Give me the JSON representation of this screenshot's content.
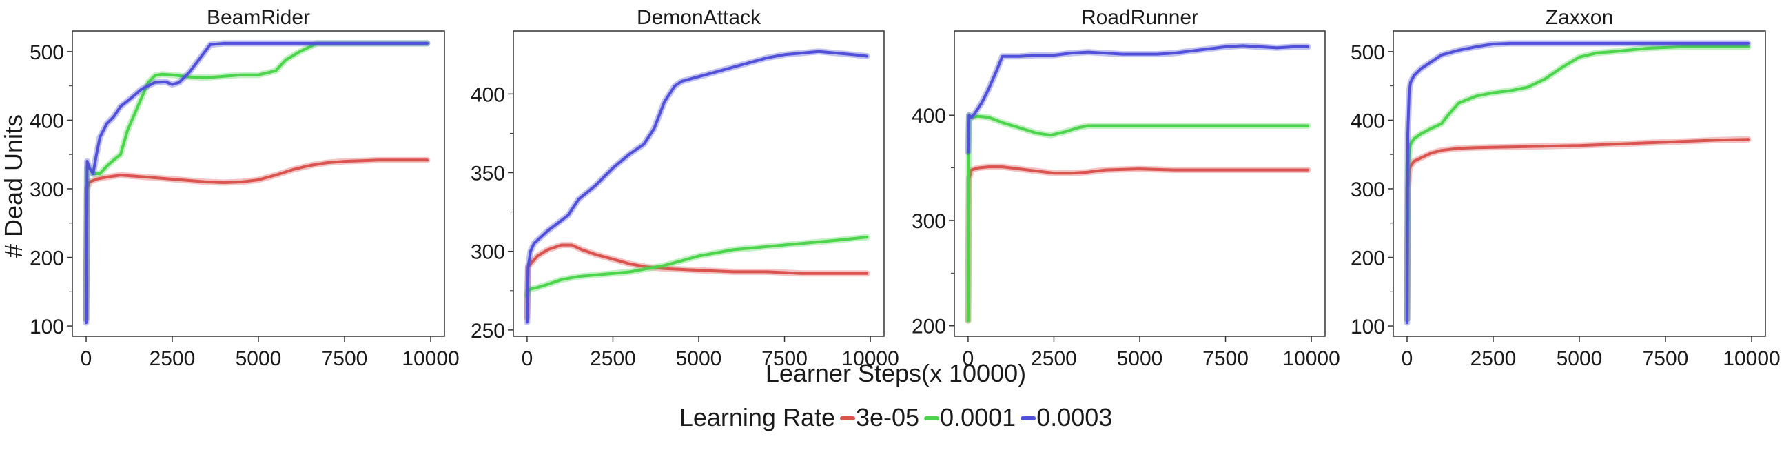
{
  "figure": {
    "ylabel": "# Dead Units",
    "xlabel": "Learner Steps(x 10000)",
    "legend": {
      "title": "Learning Rate",
      "placement": "bottom-center",
      "entries": [
        {
          "label": "3e-05",
          "color": "#d9534f"
        },
        {
          "label": "0.0001",
          "color": "#4cd44c"
        },
        {
          "label": "0.0003",
          "color": "#5050d8"
        }
      ]
    }
  },
  "chart_data": [
    {
      "type": "line",
      "title": "BeamRider",
      "xlim": [
        -400,
        10400
      ],
      "ylim": [
        85,
        530
      ],
      "xticks": [
        0,
        2500,
        5000,
        7500,
        10000
      ],
      "yticks": [
        100,
        200,
        300,
        400,
        500
      ],
      "series": [
        {
          "name": "3e-05",
          "color": "#d9534f",
          "x": [
            0,
            30,
            100,
            300,
            600,
            1000,
            1500,
            2000,
            2500,
            3000,
            3500,
            4000,
            4500,
            5000,
            5500,
            6000,
            6500,
            7000,
            7500,
            8000,
            8500,
            9000,
            9500,
            9900
          ],
          "y": [
            110,
            300,
            310,
            314,
            317,
            320,
            318,
            316,
            314,
            312,
            310,
            309,
            310,
            313,
            320,
            328,
            334,
            338,
            340,
            341,
            342,
            342,
            342,
            342
          ]
        },
        {
          "name": "0.0001",
          "color": "#4cd44c",
          "x": [
            0,
            30,
            100,
            200,
            400,
            600,
            800,
            1000,
            1200,
            1500,
            1800,
            2000,
            2200,
            2500,
            3000,
            3500,
            4000,
            4500,
            5000,
            5500,
            5800,
            6200,
            6700,
            7000,
            8000,
            9000,
            9900
          ],
          "y": [
            110,
            330,
            330,
            322,
            322,
            333,
            342,
            350,
            385,
            420,
            455,
            465,
            467,
            466,
            463,
            462,
            464,
            466,
            466,
            472,
            488,
            500,
            512,
            512,
            512,
            512,
            512
          ]
        },
        {
          "name": "0.0003",
          "color": "#5050d8",
          "x": [
            0,
            30,
            100,
            200,
            300,
            400,
            600,
            800,
            1000,
            1300,
            1600,
            2000,
            2300,
            2500,
            2700,
            3000,
            3300,
            3600,
            3800,
            4000,
            5000,
            6000,
            7000,
            8000,
            9000,
            9900
          ],
          "y": [
            105,
            340,
            330,
            322,
            350,
            375,
            395,
            405,
            420,
            432,
            445,
            455,
            456,
            452,
            455,
            470,
            490,
            510,
            511,
            512,
            512,
            512,
            512,
            512,
            512,
            512
          ]
        }
      ]
    },
    {
      "type": "line",
      "title": "DemonAttack",
      "xlim": [
        -400,
        10400
      ],
      "ylim": [
        246,
        440
      ],
      "xticks": [
        0,
        2500,
        5000,
        7500,
        10000
      ],
      "yticks": [
        250,
        300,
        350,
        400
      ],
      "series": [
        {
          "name": "3e-05",
          "color": "#d9534f",
          "x": [
            0,
            30,
            100,
            300,
            600,
            1000,
            1300,
            1600,
            2000,
            2500,
            3000,
            3500,
            4000,
            5000,
            6000,
            7000,
            8000,
            9000,
            9900
          ],
          "y": [
            258,
            290,
            292,
            297,
            301,
            304,
            304,
            301,
            298,
            295,
            292,
            290,
            289,
            288,
            287,
            287,
            286,
            286,
            286
          ]
        },
        {
          "name": "0.0001",
          "color": "#4cd44c",
          "x": [
            0,
            30,
            100,
            300,
            600,
            1000,
            1500,
            2000,
            2500,
            3000,
            3500,
            4000,
            4500,
            5000,
            5500,
            6000,
            6500,
            7000,
            8000,
            9000,
            9900
          ],
          "y": [
            272,
            275,
            276,
            277,
            279,
            282,
            284,
            285,
            286,
            287,
            289,
            291,
            294,
            297,
            299,
            301,
            302,
            303,
            305,
            307,
            309
          ]
        },
        {
          "name": "0.0003",
          "color": "#5050d8",
          "x": [
            0,
            30,
            100,
            200,
            400,
            600,
            900,
            1200,
            1500,
            2000,
            2500,
            3000,
            3400,
            3700,
            4000,
            4300,
            4500,
            5000,
            5500,
            6000,
            6500,
            7000,
            7500,
            8000,
            8500,
            9000,
            9500,
            9900
          ],
          "y": [
            255,
            290,
            300,
            305,
            309,
            313,
            318,
            323,
            333,
            342,
            353,
            362,
            368,
            378,
            395,
            405,
            408,
            411,
            414,
            417,
            420,
            423,
            425,
            426,
            427,
            426,
            425,
            424
          ]
        }
      ]
    },
    {
      "type": "line",
      "title": "RoadRunner",
      "xlim": [
        -400,
        10400
      ],
      "ylim": [
        190,
        480
      ],
      "xticks": [
        0,
        2500,
        5000,
        7500,
        10000
      ],
      "yticks": [
        200,
        300,
        400
      ],
      "series": [
        {
          "name": "3e-05",
          "color": "#d9534f",
          "x": [
            0,
            30,
            100,
            300,
            600,
            1000,
            1500,
            2000,
            2500,
            3000,
            3500,
            4000,
            5000,
            6000,
            7000,
            8000,
            9000,
            9900
          ],
          "y": [
            205,
            340,
            348,
            350,
            351,
            351,
            349,
            347,
            345,
            345,
            346,
            348,
            349,
            348,
            348,
            348,
            348,
            348
          ]
        },
        {
          "name": "0.0001",
          "color": "#4cd44c",
          "x": [
            0,
            30,
            100,
            300,
            600,
            1000,
            1500,
            2000,
            2400,
            2800,
            3200,
            3500,
            4000,
            5000,
            6000,
            7000,
            8000,
            9000,
            9900
          ],
          "y": [
            205,
            400,
            398,
            399,
            398,
            393,
            388,
            383,
            381,
            384,
            388,
            390,
            390,
            390,
            390,
            390,
            390,
            390,
            390
          ]
        },
        {
          "name": "0.0003",
          "color": "#5050d8",
          "x": [
            0,
            30,
            100,
            200,
            400,
            600,
            800,
            1000,
            1500,
            2000,
            2500,
            3000,
            3500,
            4000,
            4500,
            5000,
            5500,
            6000,
            6500,
            7000,
            7500,
            8000,
            8500,
            9000,
            9500,
            9900
          ],
          "y": [
            365,
            400,
            398,
            402,
            412,
            425,
            440,
            456,
            456,
            457,
            457,
            459,
            460,
            459,
            458,
            458,
            458,
            459,
            461,
            463,
            465,
            466,
            465,
            464,
            465,
            465
          ]
        }
      ]
    },
    {
      "type": "line",
      "title": "Zaxxon",
      "xlim": [
        -400,
        10400
      ],
      "ylim": [
        85,
        530
      ],
      "xticks": [
        0,
        2500,
        5000,
        7500,
        10000
      ],
      "yticks": [
        100,
        200,
        300,
        400,
        500
      ],
      "series": [
        {
          "name": "3e-05",
          "color": "#d9534f",
          "x": [
            0,
            30,
            60,
            100,
            200,
            400,
            700,
            1000,
            1500,
            2000,
            3000,
            4000,
            5000,
            6000,
            7000,
            8000,
            9000,
            9900
          ],
          "y": [
            110,
            300,
            325,
            333,
            340,
            345,
            352,
            356,
            359,
            360,
            361,
            362,
            363,
            365,
            367,
            369,
            371,
            372
          ]
        },
        {
          "name": "0.0001",
          "color": "#4cd44c",
          "x": [
            0,
            30,
            60,
            100,
            200,
            400,
            700,
            1000,
            1200,
            1500,
            2000,
            2500,
            3000,
            3500,
            4000,
            4500,
            5000,
            5500,
            6000,
            7000,
            8000,
            9000,
            9900
          ],
          "y": [
            110,
            330,
            350,
            365,
            373,
            380,
            388,
            395,
            408,
            425,
            435,
            440,
            443,
            448,
            460,
            477,
            492,
            498,
            500,
            505,
            507,
            507,
            507
          ]
        },
        {
          "name": "0.0003",
          "color": "#5050d8",
          "x": [
            0,
            20,
            60,
            100,
            200,
            400,
            700,
            1000,
            1500,
            2000,
            2500,
            3000,
            4000,
            5000,
            6000,
            7000,
            8000,
            9000,
            9900
          ],
          "y": [
            105,
            380,
            440,
            455,
            465,
            475,
            485,
            495,
            502,
            507,
            511,
            512,
            512,
            512,
            512,
            512,
            512,
            512,
            512
          ]
        }
      ]
    }
  ]
}
